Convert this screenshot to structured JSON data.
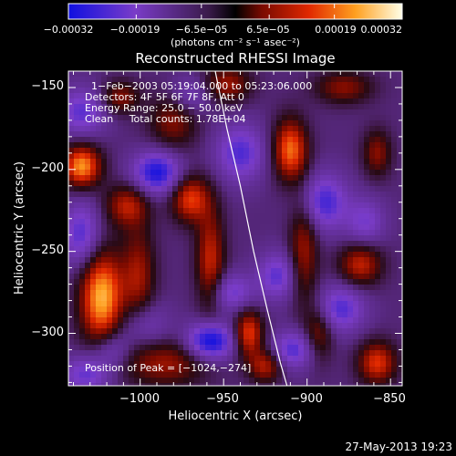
{
  "chart_data": {
    "type": "heatmap",
    "title": "Reconstructed RHESSI Image",
    "xlabel": "Heliocentric X (arcsec)",
    "ylabel": "Heliocentric Y (arcsec)",
    "xlim": [
      -1043,
      -843
    ],
    "ylim": [
      -332,
      -140
    ],
    "xticks": [
      -1000,
      -950,
      -900,
      -850
    ],
    "yticks": [
      -300,
      -250,
      -200,
      -150
    ],
    "xtick_labels": [
      "−1000",
      "−950",
      "−900",
      "−850"
    ],
    "ytick_labels": [
      "−300",
      "−250",
      "−200",
      "−150"
    ],
    "colorbar": {
      "range": [
        -0.00032,
        0.00032
      ],
      "ticks": [
        -0.00032,
        -0.00019,
        -6.5e-05,
        6.5e-05,
        0.00019,
        0.00032
      ],
      "tick_labels": [
        "−0.00032",
        "−0.00019",
        "−6.5e−05",
        "6.5e−05",
        "0.00019",
        "0.00032"
      ],
      "units": "(photons cm⁻² s⁻¹ asec⁻²)"
    },
    "annotations": [
      "1−Feb−2003 05:19:04.000 to 05:23:06.000",
      "Detectors: 4F 5F 6F 7F 8F, Att 0",
      "Energy Range: 25.0 − 50.0 keV",
      "Clean     Total counts: 1.78E+04"
    ],
    "peak_label": "Position of Peak = [−1024,−274]",
    "peak": [
      -1024,
      -274
    ],
    "limb_curve": {
      "x": [
        -955,
        -948,
        -940,
        -932,
        -924,
        -916,
        -912
      ],
      "y": [
        -140,
        -175,
        -210,
        -250,
        -285,
        -318,
        -332
      ]
    },
    "blobs": [
      {
        "x": -1023,
        "y": -278,
        "sx": 9,
        "sy": 20,
        "v": 1.0
      },
      {
        "x": -1035,
        "y": -198,
        "sx": 8,
        "sy": 9,
        "v": 0.92
      },
      {
        "x": -1008,
        "y": -222,
        "sx": 9,
        "sy": 9,
        "v": 0.55
      },
      {
        "x": -1001,
        "y": -265,
        "sx": 7,
        "sy": 22,
        "v": 0.5
      },
      {
        "x": -985,
        "y": -318,
        "sx": 18,
        "sy": 10,
        "v": 0.5
      },
      {
        "x": -980,
        "y": -170,
        "sx": 10,
        "sy": 12,
        "v": 0.45
      },
      {
        "x": -970,
        "y": -218,
        "sx": 8,
        "sy": 10,
        "v": 0.7
      },
      {
        "x": -958,
        "y": -255,
        "sx": 6,
        "sy": 22,
        "v": 0.6
      },
      {
        "x": -935,
        "y": -300,
        "sx": 6,
        "sy": 10,
        "v": 0.72
      },
      {
        "x": -925,
        "y": -320,
        "sx": 7,
        "sy": 7,
        "v": 0.55
      },
      {
        "x": -910,
        "y": -188,
        "sx": 7,
        "sy": 13,
        "v": 0.82
      },
      {
        "x": -902,
        "y": -248,
        "sx": 6,
        "sy": 24,
        "v": 0.5
      },
      {
        "x": -893,
        "y": -300,
        "sx": 6,
        "sy": 12,
        "v": 0.45
      },
      {
        "x": -868,
        "y": -258,
        "sx": 9,
        "sy": 9,
        "v": 0.6
      },
      {
        "x": -858,
        "y": -318,
        "sx": 8,
        "sy": 9,
        "v": 0.68
      },
      {
        "x": -858,
        "y": -190,
        "sx": 6,
        "sy": 10,
        "v": 0.45
      },
      {
        "x": -1012,
        "y": -156,
        "sx": 8,
        "sy": 7,
        "v": 0.45
      },
      {
        "x": -948,
        "y": -148,
        "sx": 10,
        "sy": 8,
        "v": 0.5
      },
      {
        "x": -878,
        "y": -150,
        "sx": 12,
        "sy": 7,
        "v": 0.45
      },
      {
        "x": -990,
        "y": -202,
        "sx": 10,
        "sy": 9,
        "v": -0.75
      },
      {
        "x": -958,
        "y": -305,
        "sx": 10,
        "sy": 8,
        "v": -0.85
      },
      {
        "x": -1035,
        "y": -165,
        "sx": 10,
        "sy": 10,
        "v": -0.5
      },
      {
        "x": -1035,
        "y": -240,
        "sx": 8,
        "sy": 14,
        "v": -0.55
      },
      {
        "x": -1032,
        "y": -325,
        "sx": 10,
        "sy": 8,
        "v": -0.5
      },
      {
        "x": -940,
        "y": -190,
        "sx": 10,
        "sy": 12,
        "v": -0.55
      },
      {
        "x": -945,
        "y": -275,
        "sx": 9,
        "sy": 8,
        "v": -0.45
      },
      {
        "x": -918,
        "y": -265,
        "sx": 8,
        "sy": 10,
        "v": -0.5
      },
      {
        "x": -890,
        "y": -220,
        "sx": 10,
        "sy": 12,
        "v": -0.6
      },
      {
        "x": -880,
        "y": -285,
        "sx": 10,
        "sy": 10,
        "v": -0.55
      },
      {
        "x": -865,
        "y": -232,
        "sx": 8,
        "sy": 10,
        "v": -0.4
      },
      {
        "x": -908,
        "y": -310,
        "sx": 9,
        "sy": 8,
        "v": -0.55
      },
      {
        "x": -998,
        "y": -295,
        "sx": 10,
        "sy": 10,
        "v": -0.35
      },
      {
        "x": -970,
        "y": -155,
        "sx": 9,
        "sy": 8,
        "v": -0.35
      },
      {
        "x": -1017,
        "y": -310,
        "sx": 8,
        "sy": 8,
        "v": -0.4
      }
    ]
  },
  "footer": {
    "timestamp": "27-May-2013 19:23"
  }
}
